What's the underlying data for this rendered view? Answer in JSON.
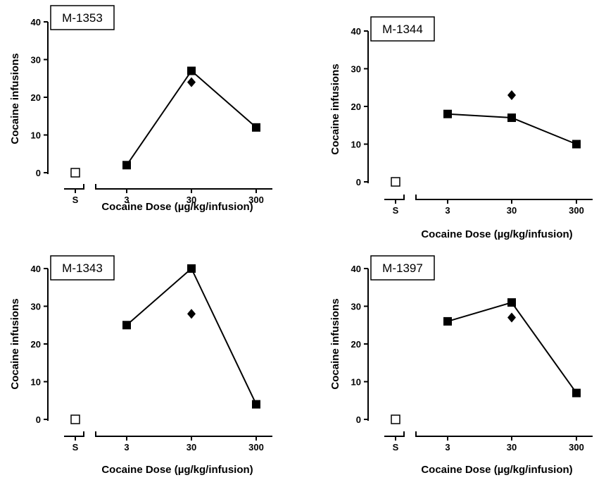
{
  "chart_data": [
    {
      "type": "scatter",
      "title": "M-1353",
      "xlabel": "Cocaine Dose (µg/kg/infusion)",
      "ylabel": "Cocaine infusions",
      "categories": [
        "S",
        "3",
        "30",
        "300"
      ],
      "ylim": [
        0,
        40
      ],
      "yticks": [
        0,
        10,
        20,
        30,
        40
      ],
      "series": [
        {
          "marker": "open-square",
          "x": [
            "S"
          ],
          "values": [
            0
          ]
        },
        {
          "marker": "filled-square",
          "x": [
            "3",
            "30",
            "300"
          ],
          "values": [
            2,
            27,
            12
          ]
        },
        {
          "marker": "filled-diamond",
          "x": [
            "30"
          ],
          "values": [
            24
          ]
        }
      ]
    },
    {
      "type": "scatter",
      "title": "M-1344",
      "xlabel": "Cocaine Dose (µg/kg/infusion)",
      "ylabel": "Cocaine infusions",
      "categories": [
        "S",
        "3",
        "30",
        "300"
      ],
      "ylim": [
        0,
        40
      ],
      "yticks": [
        0,
        10,
        20,
        30,
        40
      ],
      "series": [
        {
          "marker": "open-square",
          "x": [
            "S"
          ],
          "values": [
            0
          ]
        },
        {
          "marker": "filled-square",
          "x": [
            "3",
            "30",
            "300"
          ],
          "values": [
            18,
            17,
            10
          ]
        },
        {
          "marker": "filled-diamond",
          "x": [
            "30"
          ],
          "values": [
            23
          ]
        }
      ]
    },
    {
      "type": "scatter",
      "title": "M-1343",
      "xlabel": "Cocaine Dose (µg/kg/infusion)",
      "ylabel": "Cocaine infusions",
      "categories": [
        "S",
        "3",
        "30",
        "300"
      ],
      "ylim": [
        0,
        40
      ],
      "yticks": [
        0,
        10,
        20,
        30,
        40
      ],
      "series": [
        {
          "marker": "open-square",
          "x": [
            "S"
          ],
          "values": [
            0
          ]
        },
        {
          "marker": "filled-square",
          "x": [
            "3",
            "30",
            "300"
          ],
          "values": [
            25,
            40,
            4
          ]
        },
        {
          "marker": "filled-diamond",
          "x": [
            "30"
          ],
          "values": [
            28
          ]
        }
      ]
    },
    {
      "type": "scatter",
      "title": "M-1397",
      "xlabel": "Cocaine Dose (µg/kg/infusion)",
      "ylabel": "Cocaine infusions",
      "categories": [
        "S",
        "3",
        "30",
        "300"
      ],
      "ylim": [
        0,
        40
      ],
      "yticks": [
        0,
        10,
        20,
        30,
        40
      ],
      "series": [
        {
          "marker": "open-square",
          "x": [
            "S"
          ],
          "values": [
            0
          ]
        },
        {
          "marker": "filled-square",
          "x": [
            "3",
            "30",
            "300"
          ],
          "values": [
            26,
            31,
            7
          ]
        },
        {
          "marker": "filled-diamond",
          "x": [
            "30"
          ],
          "values": [
            27
          ]
        }
      ]
    }
  ]
}
